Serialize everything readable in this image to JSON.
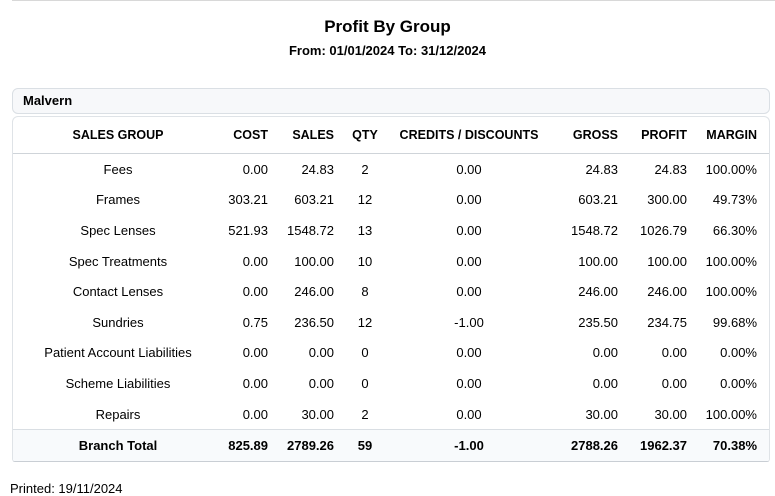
{
  "page": {
    "title": "Profit By Group",
    "subtitle": "From: 01/01/2024 To: 31/12/2024",
    "printed": "Printed: 19/11/2024"
  },
  "report_table": {
    "group_header": "Malvern",
    "columns": [
      {
        "label": "SALES GROUP",
        "align": "center"
      },
      {
        "label": "COST",
        "align": "right"
      },
      {
        "label": "SALES",
        "align": "right"
      },
      {
        "label": "QTY",
        "align": "center"
      },
      {
        "label": "CREDITS / DISCOUNTS",
        "align": "center"
      },
      {
        "label": "GROSS",
        "align": "right"
      },
      {
        "label": "PROFIT",
        "align": "right"
      },
      {
        "label": "MARGIN",
        "align": "right"
      }
    ],
    "rows": [
      [
        "Fees",
        "0.00",
        "24.83",
        "2",
        "0.00",
        "24.83",
        "24.83",
        "100.00%"
      ],
      [
        "Frames",
        "303.21",
        "603.21",
        "12",
        "0.00",
        "603.21",
        "300.00",
        "49.73%"
      ],
      [
        "Spec Lenses",
        "521.93",
        "1548.72",
        "13",
        "0.00",
        "1548.72",
        "1026.79",
        "66.30%"
      ],
      [
        "Spec Treatments",
        "0.00",
        "100.00",
        "10",
        "0.00",
        "100.00",
        "100.00",
        "100.00%"
      ],
      [
        "Contact Lenses",
        "0.00",
        "246.00",
        "8",
        "0.00",
        "246.00",
        "246.00",
        "100.00%"
      ],
      [
        "Sundries",
        "0.75",
        "236.50",
        "12",
        "-1.00",
        "235.50",
        "234.75",
        "99.68%"
      ],
      [
        "Patient Account Liabilities",
        "0.00",
        "0.00",
        "0",
        "0.00",
        "0.00",
        "0.00",
        "0.00%"
      ],
      [
        "Scheme Liabilities",
        "0.00",
        "0.00",
        "0",
        "0.00",
        "0.00",
        "0.00",
        "0.00%"
      ],
      [
        "Repairs",
        "0.00",
        "30.00",
        "2",
        "0.00",
        "30.00",
        "30.00",
        "100.00%"
      ]
    ],
    "total_row": [
      "Branch Total",
      "825.89",
      "2789.26",
      "59",
      "-1.00",
      "2788.26",
      "1962.37",
      "70.38%"
    ]
  },
  "colors": {
    "page_divider": "#d8d8d8",
    "group_header_bg": "#f7f8fa",
    "card_border": "#dfe3e7",
    "header_rule": "#cfd4d9",
    "total_row_bg": "#f8fafc",
    "text": "#000000"
  }
}
